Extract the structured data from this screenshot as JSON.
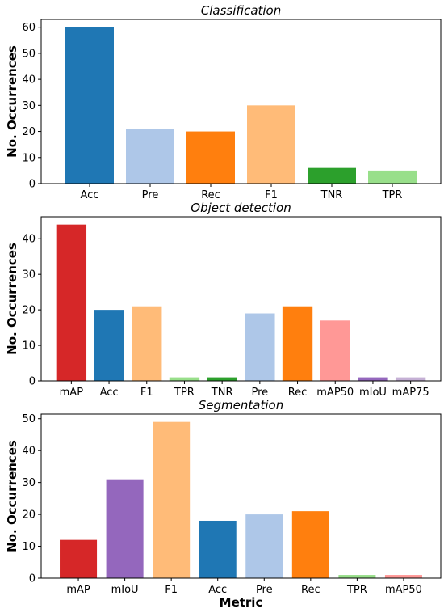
{
  "chart_data": [
    {
      "type": "bar",
      "title": "Classification",
      "ylabel": "No. Occurrences",
      "xlabel": "",
      "ylim": [
        0,
        63
      ],
      "yticks": [
        0,
        10,
        20,
        30,
        40,
        50,
        60
      ],
      "categories": [
        "Acc",
        "Pre",
        "Rec",
        "F1",
        "TNR",
        "TPR"
      ],
      "values": [
        60,
        21,
        20,
        30,
        6,
        5
      ],
      "colors": [
        "#1f77b4",
        "#aec7e8",
        "#ff7f0e",
        "#ffbb78",
        "#2ca02c",
        "#98df8a"
      ],
      "grid": false
    },
    {
      "type": "bar",
      "title": "Object detection",
      "ylabel": "No. Occurrences",
      "xlabel": "",
      "ylim": [
        0,
        46.2
      ],
      "yticks": [
        0,
        10,
        20,
        30,
        40
      ],
      "categories": [
        "mAP",
        "Acc",
        "F1",
        "TPR",
        "TNR",
        "Pre",
        "Rec",
        "mAP50",
        "mIoU",
        "mAP75"
      ],
      "values": [
        44,
        20,
        21,
        1,
        1,
        19,
        21,
        17,
        1,
        1
      ],
      "colors": [
        "#d62728",
        "#1f77b4",
        "#ffbb78",
        "#98df8a",
        "#2ca02c",
        "#aec7e8",
        "#ff7f0e",
        "#ff9896",
        "#9467bd",
        "#c5b0d5"
      ],
      "grid": false
    },
    {
      "type": "bar",
      "title": "Segmentation",
      "ylabel": "No. Occurrences",
      "xlabel": "Metric",
      "ylim": [
        0,
        51.45
      ],
      "yticks": [
        0,
        10,
        20,
        30,
        40,
        50
      ],
      "categories": [
        "mAP",
        "mIoU",
        "F1",
        "Acc",
        "Pre",
        "Rec",
        "TPR",
        "mAP50"
      ],
      "values": [
        12,
        31,
        49,
        18,
        20,
        21,
        1,
        1
      ],
      "colors": [
        "#d62728",
        "#9467bd",
        "#ffbb78",
        "#1f77b4",
        "#aec7e8",
        "#ff7f0e",
        "#98df8a",
        "#ff9896"
      ],
      "grid": false
    }
  ]
}
